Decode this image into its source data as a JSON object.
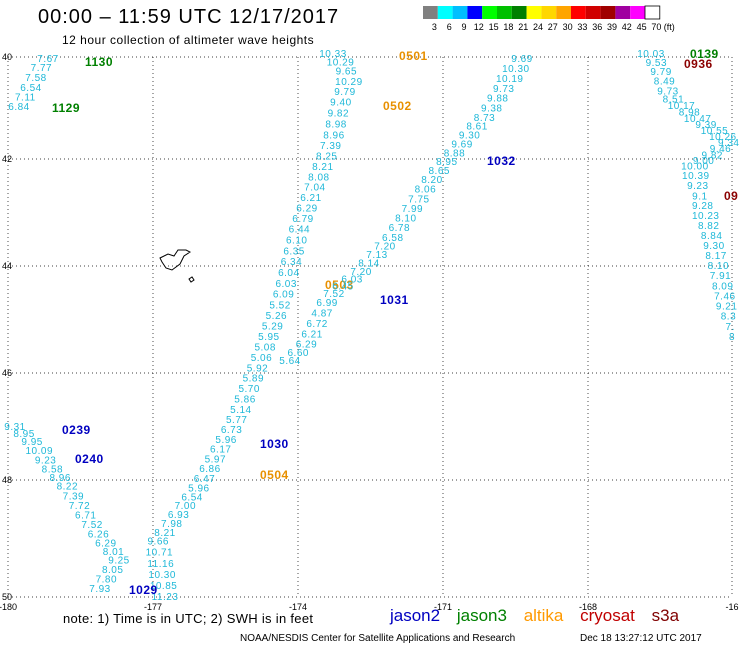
{
  "header": {
    "title": "00:00 – 11:59 UTC 12/17/2017",
    "subtitle": "12 hour collection of altimeter wave heights"
  },
  "legend": {
    "unit": "(ft)",
    "bins": [
      {
        "label": "3",
        "color": "#808080"
      },
      {
        "label": "6",
        "color": "#00ffff"
      },
      {
        "label": "9",
        "color": "#00bfff"
      },
      {
        "label": "12",
        "color": "#0000ff"
      },
      {
        "label": "15",
        "color": "#00ff00"
      },
      {
        "label": "18",
        "color": "#00c000"
      },
      {
        "label": "21",
        "color": "#008000"
      },
      {
        "label": "24",
        "color": "#ffff00"
      },
      {
        "label": "27",
        "color": "#ffd700"
      },
      {
        "label": "30",
        "color": "#ffa500"
      },
      {
        "label": "33",
        "color": "#ff0000"
      },
      {
        "label": "36",
        "color": "#d00000"
      },
      {
        "label": "39",
        "color": "#a00000"
      },
      {
        "label": "42",
        "color": "#a000a0"
      },
      {
        "label": "45",
        "color": "#ff00ff"
      },
      {
        "label": "70",
        "color": "#ffffff"
      }
    ]
  },
  "map": {
    "lon_ticks": [
      "-180",
      "-177",
      "-174",
      "-171",
      "-168",
      "-16"
    ],
    "lat_ticks": [
      "40",
      "42",
      "44",
      "46",
      "48",
      "50"
    ],
    "colors": {
      "cyan": "#1fb8d8",
      "blue": "#0000c0",
      "green": "#008000",
      "orange": "#e89000",
      "red": "#8b0000"
    },
    "tracks": [
      {
        "name": "track-a",
        "color": "cyan",
        "values": [
          "7.67",
          "7.77",
          "7.58",
          "6.54",
          "7.11",
          "6.84"
        ],
        "pass_labels": [
          {
            "text": "1130",
            "color": "green"
          },
          {
            "text": "1129",
            "color": "green"
          }
        ]
      },
      {
        "name": "track-b",
        "color": "cyan",
        "values": [
          "10.33",
          "10.29",
          "9.65",
          "10.29",
          "9.79",
          "9.40",
          "9.82",
          "8.98",
          "8.96",
          "7.39",
          "8.25",
          "8.21",
          "8.08",
          "7.04",
          "6.21",
          "6.29",
          "6.79",
          "6.44",
          "6.10",
          "6.35",
          "6.34",
          "6.04",
          "6.03",
          "6.09",
          "5.52",
          "5.26",
          "5.29",
          "5.95",
          "5.08",
          "5.06",
          "5.92",
          "5.89",
          "5.70",
          "5.86",
          "5.14",
          "5.77",
          "6.73",
          "5.96",
          "6.17",
          "5.97",
          "6.86",
          "6.47",
          "5.96",
          "6.54",
          "7.00",
          "6.93",
          "7.98",
          "8.21",
          "9.66",
          "10.71",
          "11.16",
          "10.30",
          "10.85",
          "11.23"
        ],
        "pass_labels": [
          {
            "text": "0501",
            "color": "orange"
          },
          {
            "text": "0502",
            "color": "orange"
          },
          {
            "text": "0503",
            "color": "orange"
          },
          {
            "text": "0504",
            "color": "orange"
          }
        ]
      },
      {
        "name": "track-c",
        "color": "cyan",
        "values": [
          "9.69",
          "10.30",
          "10.19",
          "9.73",
          "9.88",
          "9.38",
          "8.73",
          "8.61",
          "9.30",
          "9.69",
          "8.88",
          "8.95",
          "8.65",
          "8.20",
          "8.06",
          "7.75",
          "7.99",
          "8.10",
          "6.78",
          "6.58",
          "7.20",
          "7.13",
          "8.14",
          "7.20",
          "6.03",
          "6.45",
          "7.52",
          "6.99",
          "4.87",
          "6.72",
          "6.21",
          "6.29",
          "6.60",
          "5.64"
        ],
        "pass_labels": [
          {
            "text": "1032",
            "color": "blue"
          },
          {
            "text": "1031",
            "color": "blue"
          },
          {
            "text": "1030",
            "color": "blue"
          },
          {
            "text": "1029",
            "color": "blue"
          }
        ]
      },
      {
        "name": "track-d",
        "color": "cyan",
        "values": [
          "9.31",
          "8.95",
          "9.95",
          "10.09",
          "9.23",
          "8.58",
          "8.96",
          "8.22",
          "7.39",
          "7.72",
          "6.71",
          "7.52",
          "6.26",
          "6.29",
          "8.01",
          "9.25",
          "8.05",
          "7.80",
          "7.93"
        ],
        "pass_labels": [
          {
            "text": "0239",
            "color": "blue"
          },
          {
            "text": "0240",
            "color": "blue"
          }
        ]
      },
      {
        "name": "track-e",
        "color": "cyan",
        "values": [
          "10.03",
          "9.53",
          "9.79",
          "8.49",
          "9.73",
          "8.51",
          "10.17",
          "8.98",
          "10.47",
          "9.39",
          "10.55",
          "10.26",
          "9.34",
          "9.46",
          "9.82",
          "9.00",
          "10.00",
          "10.39",
          "9.23",
          "9.1",
          "9.28",
          "10.23",
          "8.82",
          "8.84",
          "9.30",
          "8.17",
          "8.10",
          "7.91",
          "8.09",
          "7.46",
          "9.21",
          "8.3",
          "7.",
          "8"
        ],
        "pass_labels": [
          {
            "text": "0139",
            "color": "green"
          },
          {
            "text": "0936",
            "color": "red"
          },
          {
            "text": "09",
            "color": "red"
          }
        ]
      }
    ]
  },
  "footer": {
    "note": "note:  1) Time is in UTC;  2) SWH is in feet",
    "satellites": [
      {
        "name": "jason2",
        "color": "#0000c0"
      },
      {
        "name": "jason3",
        "color": "#008000"
      },
      {
        "name": "altika",
        "color": "#ff9900"
      },
      {
        "name": "cryosat",
        "color": "#c00000"
      },
      {
        "name": "s3a",
        "color": "#800000"
      }
    ],
    "credit": "NOAA/NESDIS Center for Satellite Applications and Research",
    "timestamp": "Dec 18 13:27:12 UTC 2017"
  }
}
